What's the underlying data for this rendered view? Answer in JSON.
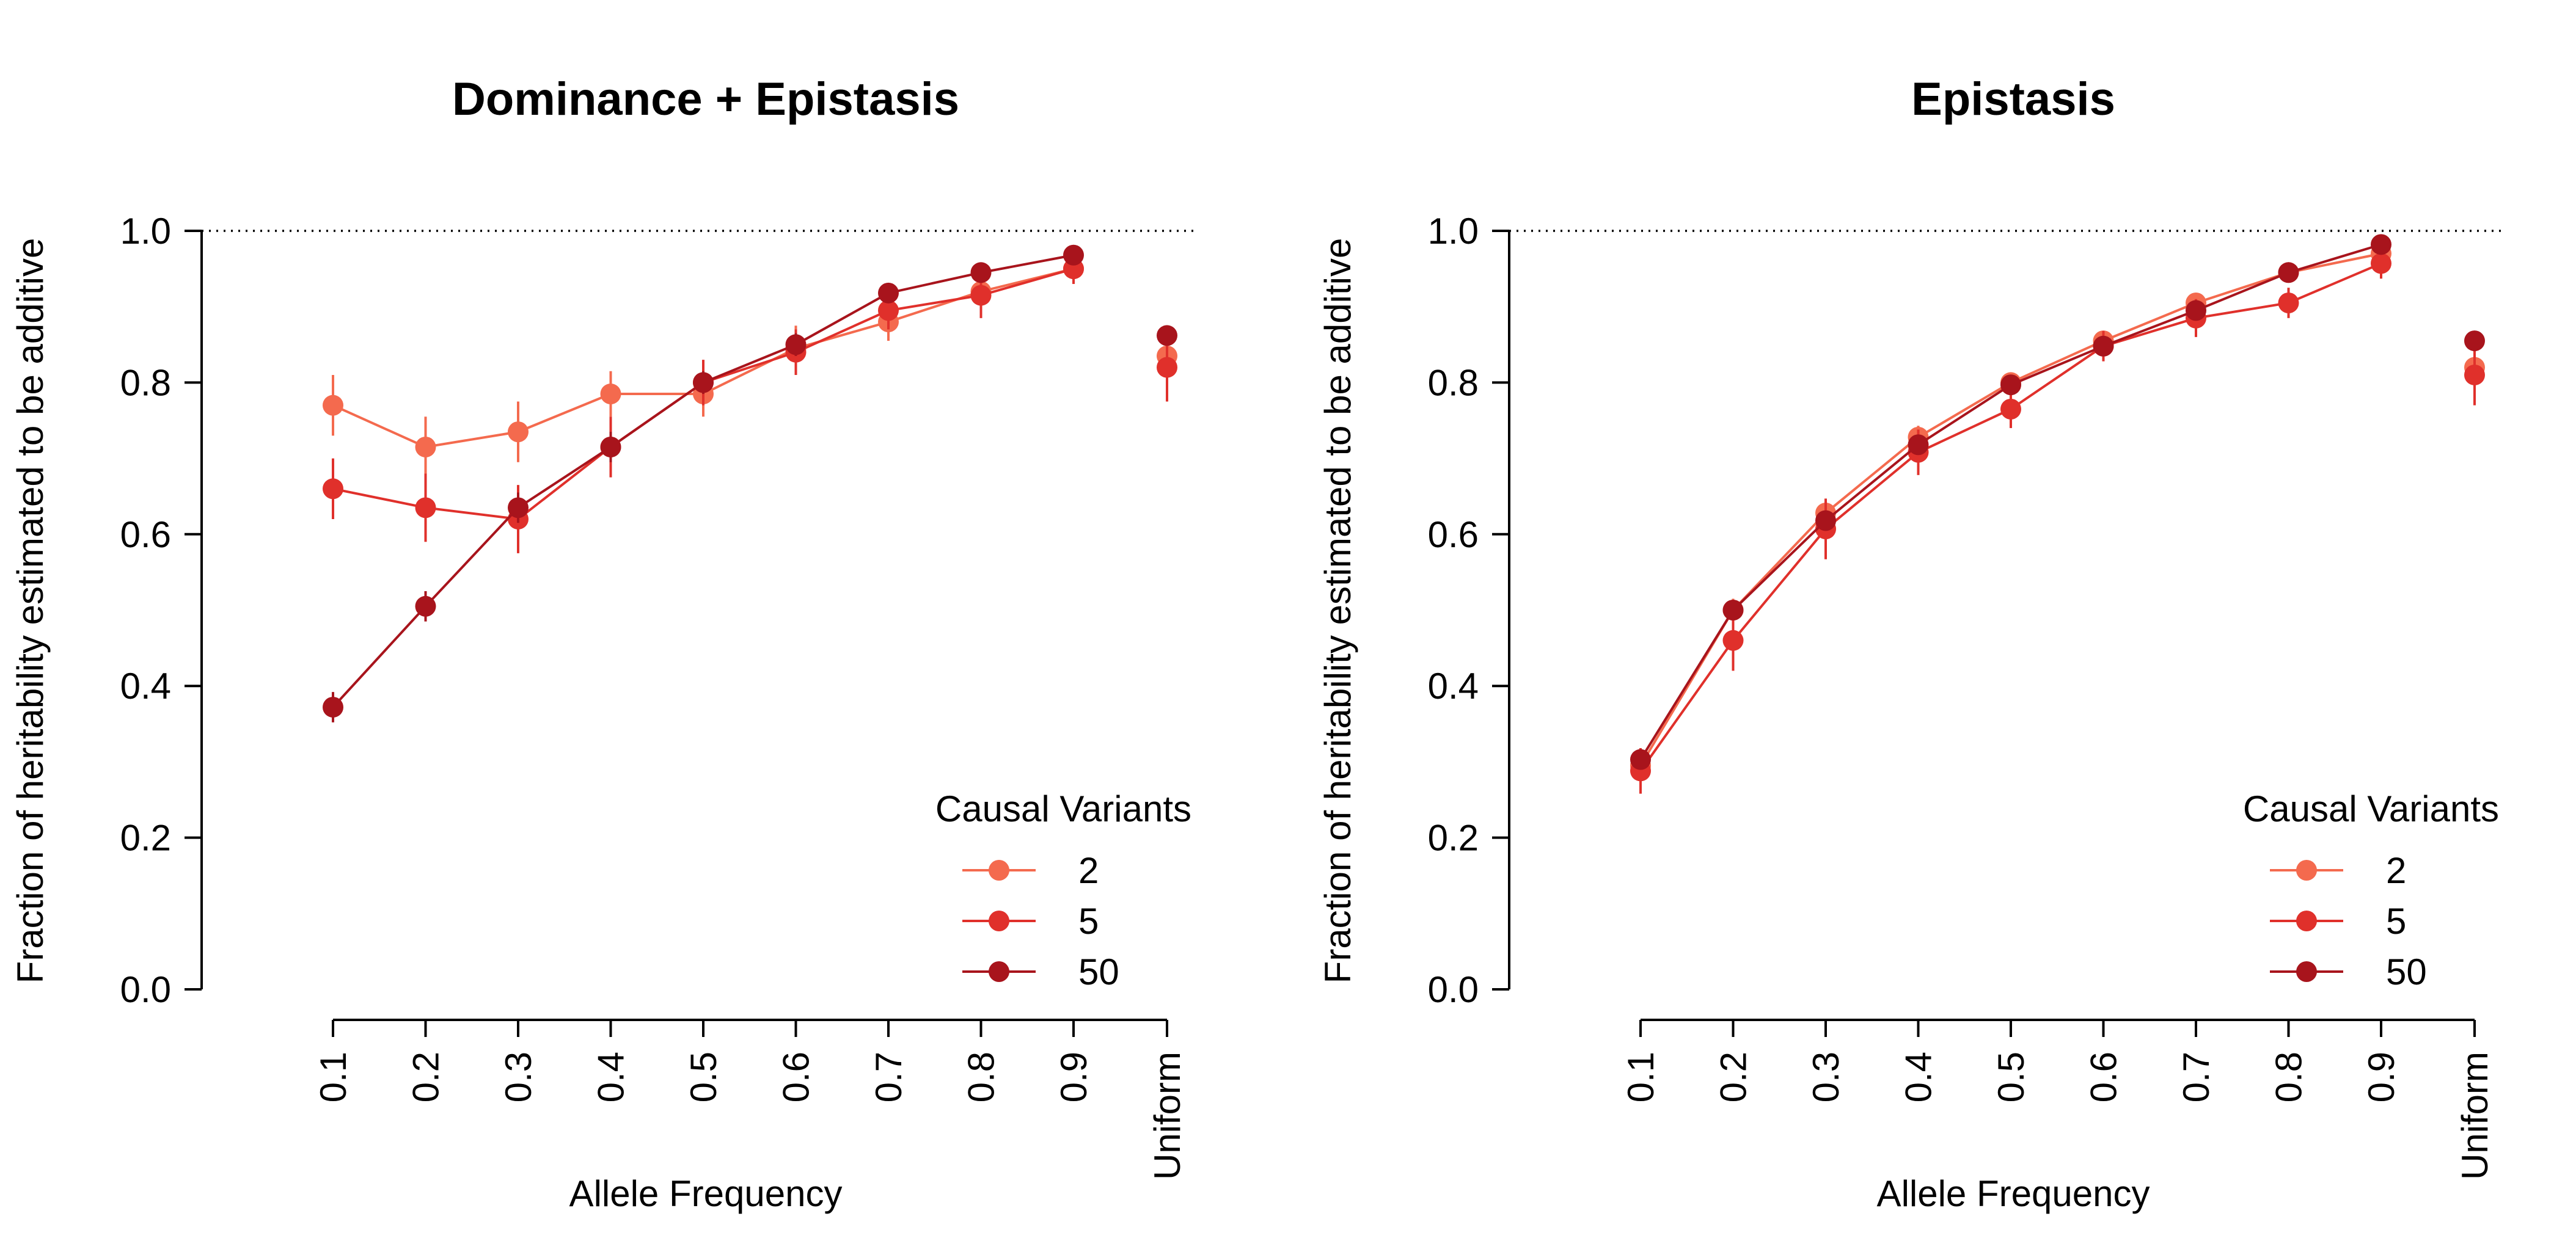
{
  "chart_data": [
    {
      "type": "line",
      "title": "Dominance + Epistasis",
      "xlabel": "Allele Frequency",
      "ylabel": "Fraction of heritability estimated to be additive",
      "categories": [
        "0.1",
        "0.2",
        "0.3",
        "0.4",
        "0.5",
        "0.6",
        "0.7",
        "0.8",
        "0.9"
      ],
      "extra_category": "Uniform",
      "ylim": [
        0,
        1
      ],
      "yticks": [
        "0.0",
        "0.2",
        "0.4",
        "0.6",
        "0.8",
        "1.0"
      ],
      "reference_line": 1.0,
      "legend_title": "Causal Variants",
      "legend_position": "bottom-right",
      "series": [
        {
          "name": "2",
          "color": "#f46a4e",
          "values": [
            0.77,
            0.715,
            0.735,
            0.785,
            0.785,
            0.845,
            0.88,
            0.92,
            0.95
          ],
          "errors": [
            0.04,
            0.04,
            0.04,
            0.03,
            0.03,
            0.03,
            0.025,
            0.025,
            0.02
          ],
          "uniform": 0.835,
          "uniform_error": 0.03
        },
        {
          "name": "5",
          "color": "#e0302b",
          "values": [
            0.66,
            0.635,
            0.62,
            0.715,
            0.8,
            0.84,
            0.895,
            0.915,
            0.95
          ],
          "errors": [
            0.04,
            0.045,
            0.045,
            0.04,
            0.03,
            0.03,
            0.025,
            0.03,
            0.02
          ],
          "uniform": 0.82,
          "uniform_error": 0.045
        },
        {
          "name": "50",
          "color": "#a8141c",
          "values": [
            0.372,
            0.505,
            0.635,
            0.715,
            0.8,
            0.85,
            0.918,
            0.945,
            0.968
          ],
          "errors": [
            0.02,
            0.02,
            0.02,
            0.02,
            0.015,
            0.015,
            0.01,
            0.01,
            0.01
          ],
          "uniform": 0.862,
          "uniform_error": 0.01
        }
      ]
    },
    {
      "type": "line",
      "title": "Epistasis",
      "xlabel": "Allele Frequency",
      "ylabel": "Fraction of heritability estimated to be additive",
      "categories": [
        "0.1",
        "0.2",
        "0.3",
        "0.4",
        "0.5",
        "0.6",
        "0.7",
        "0.8",
        "0.9"
      ],
      "extra_category": "Uniform",
      "ylim": [
        0,
        1
      ],
      "yticks": [
        "0.0",
        "0.2",
        "0.4",
        "0.6",
        "0.8",
        "1.0"
      ],
      "reference_line": 1.0,
      "legend_title": "Causal Variants",
      "legend_position": "bottom-right",
      "series": [
        {
          "name": "2",
          "color": "#f46a4e",
          "values": [
            0.295,
            0.5,
            0.628,
            0.728,
            0.8,
            0.855,
            0.905,
            0.945,
            0.97
          ],
          "errors": [
            0.015,
            0.015,
            0.015,
            0.015,
            0.012,
            0.012,
            0.012,
            0.01,
            0.01
          ],
          "uniform": 0.82,
          "uniform_error": 0.025
        },
        {
          "name": "5",
          "color": "#e0302b",
          "values": [
            0.288,
            0.46,
            0.607,
            0.708,
            0.765,
            0.848,
            0.885,
            0.905,
            0.957
          ],
          "errors": [
            0.03,
            0.04,
            0.04,
            0.03,
            0.025,
            0.02,
            0.025,
            0.02,
            0.02
          ],
          "uniform": 0.81,
          "uniform_error": 0.04
        },
        {
          "name": "50",
          "color": "#a8141c",
          "values": [
            0.303,
            0.5,
            0.618,
            0.718,
            0.797,
            0.848,
            0.895,
            0.945,
            0.982
          ],
          "errors": [
            0.01,
            0.01,
            0.01,
            0.01,
            0.01,
            0.01,
            0.01,
            0.01,
            0.008
          ],
          "uniform": 0.855,
          "uniform_error": 0.01
        }
      ]
    }
  ]
}
